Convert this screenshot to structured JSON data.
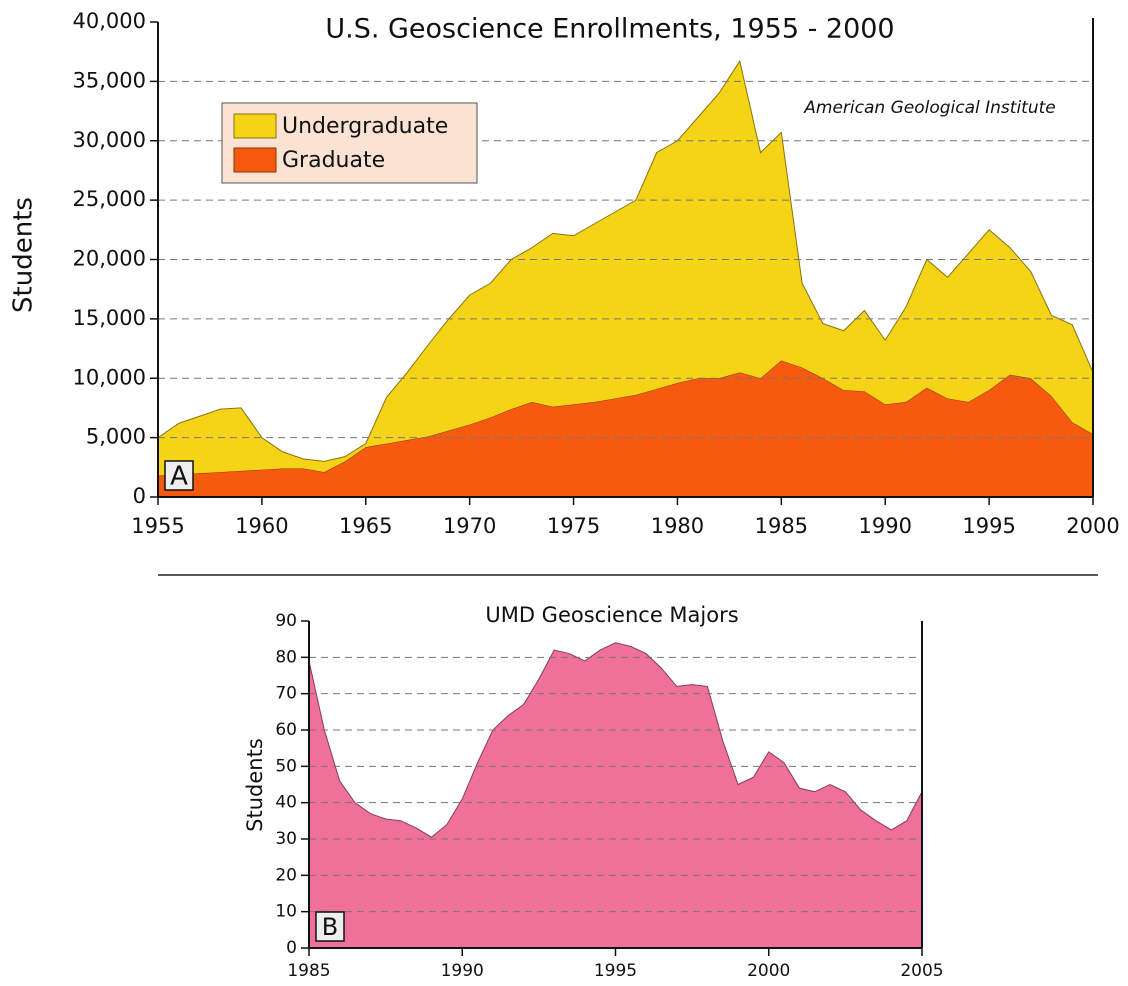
{
  "chart_data": [
    {
      "type": "area",
      "stacked": true,
      "title": "U.S. Geoscience Enrollments, 1955 - 2000",
      "y_label": "Students",
      "annotation": "American Geological Institute",
      "panel_label": "A",
      "legend": "upper left",
      "grid": true,
      "x": [
        1955,
        1956,
        1957,
        1958,
        1959,
        1960,
        1961,
        1962,
        1963,
        1964,
        1965,
        1966,
        1967,
        1968,
        1969,
        1970,
        1971,
        1972,
        1973,
        1974,
        1975,
        1976,
        1977,
        1978,
        1979,
        1980,
        1981,
        1982,
        1983,
        1984,
        1985,
        1986,
        1987,
        1988,
        1989,
        1990,
        1991,
        1992,
        1993,
        1994,
        1995,
        1996,
        1997,
        1998,
        1999,
        2000
      ],
      "series": [
        {
          "name": "Undergraduate",
          "color": "#f5d417",
          "values": [
            3200,
            4300,
            4800,
            5300,
            5300,
            2700,
            1400,
            800,
            900,
            400,
            300,
            3900,
            5700,
            7700,
            9400,
            10900,
            11300,
            12600,
            13000,
            14600,
            14200,
            15000,
            15700,
            16400,
            19900,
            20400,
            22000,
            24000,
            26200,
            19000,
            19200,
            7100,
            4600,
            5000,
            6800,
            5400,
            8000,
            10800,
            10200,
            12500,
            13500,
            10700,
            9000,
            6800,
            8200,
            5200
          ]
        },
        {
          "name": "Graduate",
          "color": "#f55a0e",
          "values": [
            1800,
            1900,
            2000,
            2100,
            2200,
            2300,
            2400,
            2400,
            2100,
            3000,
            4200,
            4500,
            4800,
            5100,
            5600,
            6100,
            6700,
            7400,
            8000,
            7600,
            7800,
            8000,
            8300,
            8600,
            9100,
            9600,
            10000,
            10000,
            10500,
            10000,
            11500,
            10900,
            10000,
            9000,
            8900,
            7800,
            8000,
            9200,
            8300,
            8000,
            9000,
            10300,
            10000,
            8500,
            6300,
            5300
          ]
        }
      ],
      "xlim": [
        1955,
        2000
      ],
      "xticks": [
        1955,
        1960,
        1965,
        1970,
        1975,
        1980,
        1985,
        1990,
        1995,
        2000
      ],
      "ylim": [
        0,
        40000
      ],
      "yticks": [
        0,
        {
          "value": 5000,
          "label": "5,000"
        },
        {
          "value": 10000,
          "label": "10,000"
        },
        {
          "value": 15000,
          "label": "15,000"
        },
        {
          "value": 20000,
          "label": "20,000"
        },
        {
          "value": 25000,
          "label": "25,000"
        },
        {
          "value": 30000,
          "label": "30,000"
        },
        {
          "value": 35000,
          "label": "35,000"
        },
        {
          "value": 40000,
          "label": "40,000"
        }
      ]
    },
    {
      "type": "area",
      "title": "UMD Geoscience Majors",
      "y_label": "Students",
      "panel_label": "B",
      "grid": true,
      "x": [
        1985,
        1985.5,
        1986,
        1986.5,
        1987,
        1987.5,
        1988,
        1988.5,
        1989,
        1989.5,
        1990,
        1990.5,
        1991,
        1991.5,
        1992,
        1992.5,
        1993,
        1993.5,
        1994,
        1994.5,
        1995,
        1995.5,
        1996,
        1996.5,
        1997,
        1997.5,
        1998,
        1998.5,
        1999,
        1999.5,
        2000,
        2000.5,
        2001,
        2001.5,
        2002,
        2002.5,
        2003,
        2003.5,
        2004,
        2004.5,
        2005
      ],
      "series": [
        {
          "name": "UMD Geoscience Majors",
          "color": "#ef7099",
          "values": [
            79,
            60,
            46,
            40,
            37,
            35.5,
            35,
            33,
            30.5,
            34,
            41,
            51,
            60,
            64,
            67,
            74,
            82,
            81,
            79,
            82,
            84,
            83,
            81,
            77,
            72,
            72.5,
            72,
            57,
            45,
            47,
            54,
            51,
            44,
            43,
            45,
            43,
            38,
            35,
            32.5,
            35,
            43
          ]
        }
      ],
      "xlim": [
        1985,
        2005
      ],
      "xticks": [
        1985,
        1990,
        1995,
        2000,
        2005
      ],
      "ylim": [
        0,
        90
      ],
      "yticks": [
        0,
        10,
        20,
        30,
        40,
        50,
        60,
        70,
        80,
        90
      ]
    }
  ]
}
